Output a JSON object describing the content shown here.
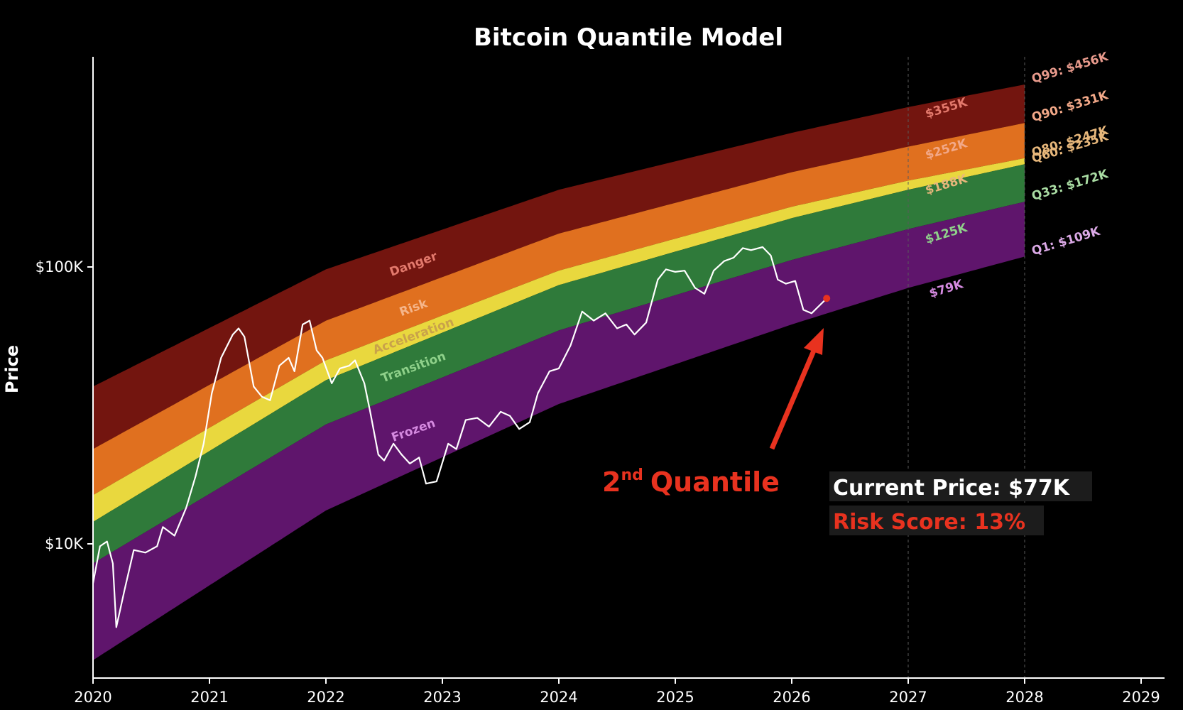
{
  "chart_data": {
    "type": "area",
    "title": "Bitcoin Quantile Model",
    "ylabel": "Price",
    "xlabel": "",
    "yscale": "log",
    "xlim": [
      2020,
      2029
    ],
    "ylim": [
      3500,
      550000
    ],
    "x_ticks": [
      "2020",
      "2021",
      "2022",
      "2023",
      "2024",
      "2025",
      "2026",
      "2027",
      "2028",
      "2029"
    ],
    "y_ticks": [
      {
        "value": 100000,
        "label": "$100K"
      },
      {
        "value": 10000,
        "label": "$10K"
      }
    ],
    "vertical_reference_lines": [
      2027,
      2028
    ],
    "background": "#000000",
    "quantile_curves": [
      {
        "name": "Q99",
        "points": [
          [
            2020,
            37000
          ],
          [
            2022,
            98000
          ],
          [
            2024,
            190000
          ],
          [
            2026,
            305000
          ],
          [
            2027,
            378000
          ],
          [
            2028,
            456000
          ]
        ]
      },
      {
        "name": "Q90",
        "points": [
          [
            2020,
            22000
          ],
          [
            2022,
            64000
          ],
          [
            2024,
            132000
          ],
          [
            2026,
            220000
          ],
          [
            2027,
            272000
          ],
          [
            2028,
            331000
          ]
        ]
      },
      {
        "name": "Q80",
        "points": [
          [
            2020,
            15000
          ],
          [
            2022,
            46000
          ],
          [
            2024,
            97000
          ],
          [
            2026,
            165000
          ],
          [
            2027,
            205000
          ],
          [
            2028,
            247000
          ]
        ]
      },
      {
        "name": "Q60",
        "points": [
          [
            2020,
            12000
          ],
          [
            2022,
            39000
          ],
          [
            2024,
            86000
          ],
          [
            2026,
            150000
          ],
          [
            2027,
            190000
          ],
          [
            2028,
            235000
          ]
        ]
      },
      {
        "name": "Q33",
        "points": [
          [
            2020,
            8500
          ],
          [
            2022,
            27000
          ],
          [
            2024,
            59000
          ],
          [
            2026,
            106000
          ],
          [
            2027,
            137000
          ],
          [
            2028,
            172000
          ]
        ]
      },
      {
        "name": "Q1",
        "points": [
          [
            2020,
            3800
          ],
          [
            2022,
            13200
          ],
          [
            2024,
            32000
          ],
          [
            2026,
            62000
          ],
          [
            2027,
            84000
          ],
          [
            2028,
            109000
          ]
        ]
      }
    ],
    "bands": [
      {
        "label": "Danger",
        "upper": "Q99",
        "lower": "Q90",
        "color": "#73150f",
        "text_color": "#e3796c"
      },
      {
        "label": "Risk",
        "upper": "Q90",
        "lower": "Q80",
        "color": "#e0701f",
        "text_color": "#f5b58a"
      },
      {
        "label": "Acceleration",
        "upper": "Q80",
        "lower": "Q60",
        "color": "#e9d83e",
        "text_color": "#c9a24a"
      },
      {
        "label": "Transition",
        "upper": "Q60",
        "lower": "Q33",
        "color": "#2f7a3a",
        "text_color": "#8fd18a"
      },
      {
        "label": "Frozen",
        "upper": "Q33",
        "lower": "Q1",
        "color": "#5f156c",
        "text_color": "#d58ae0"
      }
    ],
    "quantile_labels_2028": [
      {
        "text": "Q99: $456K",
        "value": 456000,
        "color": "#e89a8c"
      },
      {
        "text": "Q90: $331K",
        "value": 331000,
        "color": "#f2a888"
      },
      {
        "text": "Q80: $247K",
        "value": 247000,
        "color": "#e7b77b"
      },
      {
        "text": "Q60: $235K",
        "value": 235000,
        "color": "#e7b77b"
      },
      {
        "text": "Q33: $172K",
        "value": 172000,
        "color": "#a9dca3"
      },
      {
        "text": "Q1: $109K",
        "value": 109000,
        "color": "#dba9e6"
      }
    ],
    "boundary_labels_2027": [
      {
        "text": "$355K",
        "value": 355000,
        "color": "#e3796c"
      },
      {
        "text": "$252K",
        "value": 252000,
        "color": "#f2a888"
      },
      {
        "text": "$188K",
        "value": 188000,
        "color": "#e7b77b"
      },
      {
        "text": "$125K",
        "value": 125000,
        "color": "#8fd18a"
      },
      {
        "text": "$79K",
        "value": 79000,
        "color": "#d58ae0"
      }
    ],
    "price_series": {
      "color": "#ffffff",
      "points": [
        [
          2020.0,
          7200
        ],
        [
          2020.06,
          9800
        ],
        [
          2020.12,
          10200
        ],
        [
          2020.17,
          8500
        ],
        [
          2020.2,
          5000
        ],
        [
          2020.27,
          6800
        ],
        [
          2020.35,
          9500
        ],
        [
          2020.45,
          9300
        ],
        [
          2020.55,
          9800
        ],
        [
          2020.6,
          11500
        ],
        [
          2020.7,
          10700
        ],
        [
          2020.8,
          13500
        ],
        [
          2020.88,
          17500
        ],
        [
          2020.95,
          23000
        ],
        [
          2021.02,
          35000
        ],
        [
          2021.1,
          47000
        ],
        [
          2021.2,
          57000
        ],
        [
          2021.25,
          60000
        ],
        [
          2021.3,
          56000
        ],
        [
          2021.38,
          37000
        ],
        [
          2021.45,
          34000
        ],
        [
          2021.52,
          33000
        ],
        [
          2021.6,
          44000
        ],
        [
          2021.68,
          47000
        ],
        [
          2021.73,
          42000
        ],
        [
          2021.8,
          62000
        ],
        [
          2021.86,
          64000
        ],
        [
          2021.92,
          50000
        ],
        [
          2021.97,
          47000
        ],
        [
          2022.05,
          38000
        ],
        [
          2022.12,
          43000
        ],
        [
          2022.2,
          44000
        ],
        [
          2022.25,
          46000
        ],
        [
          2022.33,
          38000
        ],
        [
          2022.38,
          30000
        ],
        [
          2022.45,
          21000
        ],
        [
          2022.5,
          20000
        ],
        [
          2022.58,
          23000
        ],
        [
          2022.65,
          21000
        ],
        [
          2022.72,
          19500
        ],
        [
          2022.8,
          20500
        ],
        [
          2022.86,
          16500
        ],
        [
          2022.95,
          16800
        ],
        [
          2023.05,
          23000
        ],
        [
          2023.12,
          22000
        ],
        [
          2023.2,
          28000
        ],
        [
          2023.3,
          28500
        ],
        [
          2023.4,
          26500
        ],
        [
          2023.5,
          30000
        ],
        [
          2023.58,
          29000
        ],
        [
          2023.66,
          26000
        ],
        [
          2023.75,
          27500
        ],
        [
          2023.82,
          35000
        ],
        [
          2023.92,
          42000
        ],
        [
          2024.0,
          43000
        ],
        [
          2024.1,
          52000
        ],
        [
          2024.2,
          69000
        ],
        [
          2024.3,
          64000
        ],
        [
          2024.4,
          68000
        ],
        [
          2024.5,
          60000
        ],
        [
          2024.58,
          62000
        ],
        [
          2024.65,
          57000
        ],
        [
          2024.75,
          63000
        ],
        [
          2024.85,
          90000
        ],
        [
          2024.92,
          98000
        ],
        [
          2025.0,
          96000
        ],
        [
          2025.08,
          97000
        ],
        [
          2025.17,
          84000
        ],
        [
          2025.25,
          80000
        ],
        [
          2025.33,
          97000
        ],
        [
          2025.42,
          105000
        ],
        [
          2025.5,
          108000
        ],
        [
          2025.58,
          117000
        ],
        [
          2025.65,
          115000
        ],
        [
          2025.75,
          118000
        ],
        [
          2025.82,
          110000
        ],
        [
          2025.88,
          90000
        ],
        [
          2025.95,
          87000
        ],
        [
          2026.03,
          89000
        ],
        [
          2026.1,
          70000
        ],
        [
          2026.17,
          68000
        ],
        [
          2026.23,
          72000
        ],
        [
          2026.3,
          77000
        ]
      ]
    },
    "current_marker": {
      "x": 2026.3,
      "value": 77000,
      "color": "#e8321f"
    }
  },
  "annotation": {
    "quantile_number": "2",
    "quantile_suffix": "nd",
    "quantile_word": "Quantile",
    "color": "#e8321f"
  },
  "info_box": {
    "current_price": "Current Price: $77K",
    "risk_score": "Risk Score: 13%",
    "current_price_color": "#ffffff",
    "risk_score_color": "#e8321f",
    "box_color": "#1c1c1c"
  }
}
